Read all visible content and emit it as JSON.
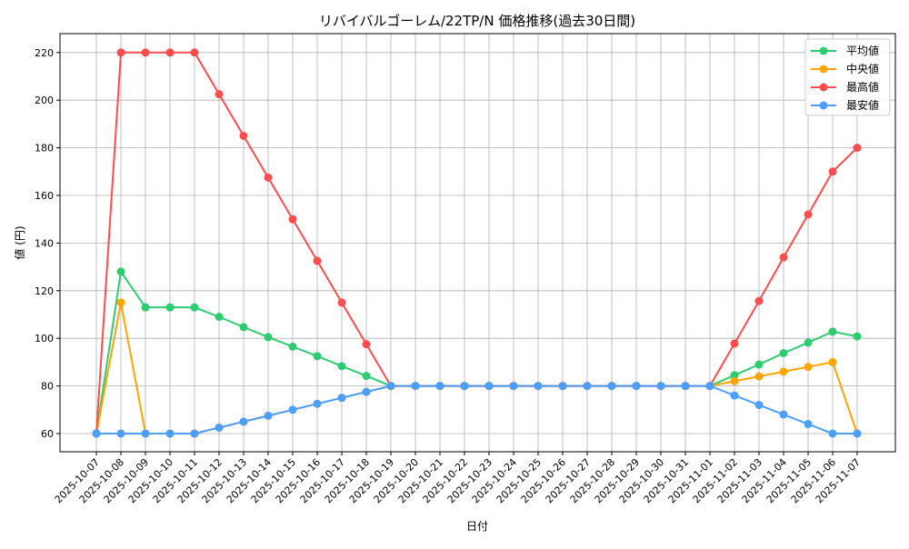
{
  "chart_data": {
    "type": "line",
    "title": "リバイバルゴーレム/22TP/N 価格推移(過去30日間)",
    "xlabel": "日付",
    "ylabel": "値 (円)",
    "ylim": [
      52,
      228
    ],
    "yticks": [
      60,
      80,
      100,
      120,
      140,
      160,
      180,
      200,
      220
    ],
    "grid": true,
    "legend_position": "top-right",
    "x": [
      "2025-10-07",
      "2025-10-08",
      "2025-10-09",
      "2025-10-10",
      "2025-10-11",
      "2025-10-12",
      "2025-10-13",
      "2025-10-14",
      "2025-10-15",
      "2025-10-16",
      "2025-10-17",
      "2025-10-18",
      "2025-10-19",
      "2025-10-20",
      "2025-10-21",
      "2025-10-22",
      "2025-10-23",
      "2025-10-24",
      "2025-10-25",
      "2025-10-26",
      "2025-10-27",
      "2025-10-28",
      "2025-10-29",
      "2025-10-30",
      "2025-10-31",
      "2025-11-01",
      "2025-11-02",
      "2025-11-03",
      "2025-11-04",
      "2025-11-05",
      "2025-11-06",
      "2025-11-07"
    ],
    "series": [
      {
        "name": "平均値",
        "color": "#2ecc71",
        "values": [
          60,
          128,
          113,
          113,
          113,
          109,
          104.7,
          100.5,
          96.5,
          92.5,
          88.3,
          84.2,
          80,
          80,
          80,
          80,
          80,
          80,
          80,
          80,
          80,
          80,
          80,
          80,
          80,
          80,
          84.5,
          89,
          93.8,
          98.2,
          102.8,
          100.8
        ]
      },
      {
        "name": "中央値",
        "color": "#ffa500",
        "values": [
          60,
          115,
          60,
          60,
          60,
          62.5,
          65,
          67.5,
          70,
          72.5,
          75,
          77.5,
          80,
          80,
          80,
          80,
          80,
          80,
          80,
          80,
          80,
          80,
          80,
          80,
          80,
          80,
          82,
          84,
          86,
          88,
          90,
          60
        ]
      },
      {
        "name": "最高値",
        "color": "#ff4d4d",
        "values": [
          60,
          220,
          220,
          220,
          220,
          202.5,
          185,
          167.5,
          150,
          132.5,
          115,
          97.5,
          80,
          80,
          80,
          80,
          80,
          80,
          80,
          80,
          80,
          80,
          80,
          80,
          80,
          80,
          97.8,
          115.7,
          134,
          152,
          170,
          180
        ]
      },
      {
        "name": "最安値",
        "color": "#4d9fff",
        "values": [
          60,
          60,
          60,
          60,
          60,
          62.5,
          65,
          67.5,
          70,
          72.5,
          75,
          77.5,
          80,
          80,
          80,
          80,
          80,
          80,
          80,
          80,
          80,
          80,
          80,
          80,
          80,
          80,
          76,
          72,
          68,
          64,
          60,
          60
        ]
      }
    ]
  }
}
